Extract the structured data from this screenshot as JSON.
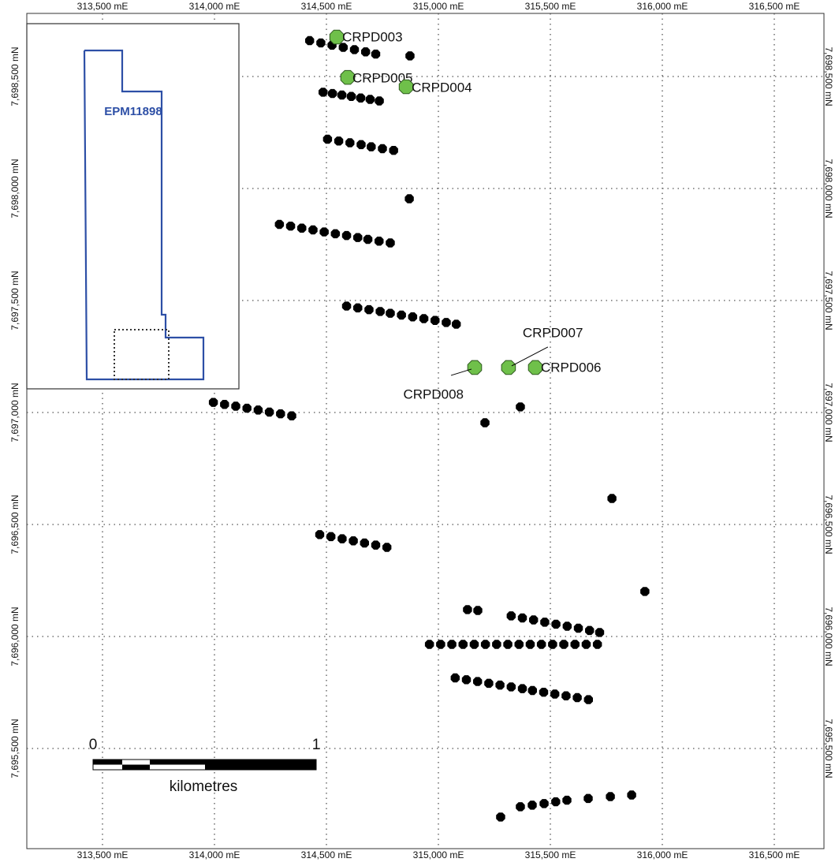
{
  "eastings": [
    {
      "value": 313500,
      "label": "313,500 mE"
    },
    {
      "value": 314000,
      "label": "314,000 mE"
    },
    {
      "value": 314500,
      "label": "314,500 mE"
    },
    {
      "value": 315000,
      "label": "315,000 mE"
    },
    {
      "value": 315500,
      "label": "315,500 mE"
    },
    {
      "value": 316000,
      "label": "316,000 mE"
    },
    {
      "value": 316500,
      "label": "316,500 mE"
    }
  ],
  "northings": [
    {
      "value": 7698500,
      "label": "7,698,500 mN"
    },
    {
      "value": 7698000,
      "label": "7,698,000 mN"
    },
    {
      "value": 7697500,
      "label": "7,697,500 mN"
    },
    {
      "value": 7697000,
      "label": "7,697,000 mN"
    },
    {
      "value": 7696500,
      "label": "7,696,500 mN"
    },
    {
      "value": 7696000,
      "label": "7,696,000 mN"
    },
    {
      "value": 7695500,
      "label": "7,695,500 mN"
    }
  ],
  "inset": {
    "tenement": "EPM11898"
  },
  "scale_bar": {
    "start": 0,
    "end": 1,
    "unit": "kilometres"
  },
  "collars": [
    {
      "label": "CRPD003",
      "easting": 314546,
      "northing": 7698676
    },
    {
      "label": "CRPD005",
      "easting": 314595,
      "northing": 7698496
    },
    {
      "label": "CRPD004",
      "easting": 314856,
      "northing": 7698454
    },
    {
      "label": "CRPD008",
      "easting": 315162,
      "northing": 7697201
    },
    {
      "label": "CRPD007",
      "easting": 315313,
      "northing": 7697201
    },
    {
      "label": "CRPD006",
      "easting": 315433,
      "northing": 7697201
    }
  ],
  "drill_lines": [
    [
      [
        314425,
        7698660
      ],
      [
        314475,
        7698650
      ],
      [
        314525,
        7698640
      ],
      [
        314575,
        7698630
      ],
      [
        314625,
        7698620
      ],
      [
        314675,
        7698610
      ],
      [
        314720,
        7698600
      ]
    ],
    [
      [
        314873,
        7698592
      ]
    ],
    [
      [
        314485,
        7698430
      ],
      [
        314527,
        7698424
      ],
      [
        314569,
        7698417
      ],
      [
        314611,
        7698411
      ],
      [
        314653,
        7698404
      ],
      [
        314695,
        7698398
      ],
      [
        314736,
        7698391
      ]
    ],
    [
      [
        314505,
        7698220
      ],
      [
        314555,
        7698212
      ],
      [
        314605,
        7698204
      ],
      [
        314655,
        7698196
      ],
      [
        314700,
        7698186
      ],
      [
        314750,
        7698178
      ],
      [
        314800,
        7698170
      ]
    ],
    [
      [
        314870,
        7697954
      ]
    ],
    [
      [
        314290,
        7697840
      ],
      [
        314340,
        7697832
      ],
      [
        314390,
        7697823
      ],
      [
        314440,
        7697815
      ],
      [
        314490,
        7697806
      ],
      [
        314540,
        7697798
      ],
      [
        314590,
        7697790
      ],
      [
        314640,
        7697781
      ],
      [
        314685,
        7697773
      ],
      [
        314735,
        7697765
      ],
      [
        314785,
        7697757
      ]
    ],
    [
      [
        314590,
        7697475
      ],
      [
        314640,
        7697467
      ],
      [
        314690,
        7697459
      ],
      [
        314740,
        7697451
      ],
      [
        314785,
        7697443
      ],
      [
        314835,
        7697435
      ],
      [
        314885,
        7697427
      ],
      [
        314935,
        7697419
      ],
      [
        314985,
        7697411
      ],
      [
        315035,
        7697402
      ],
      [
        315080,
        7697394
      ]
    ],
    [
      [
        313995,
        7697045
      ],
      [
        314045,
        7697036
      ],
      [
        314095,
        7697028
      ],
      [
        314145,
        7697019
      ],
      [
        314195,
        7697011
      ],
      [
        314245,
        7697002
      ],
      [
        314295,
        7696994
      ],
      [
        314345,
        7696985
      ]
    ],
    [
      [
        315366,
        7697025
      ]
    ],
    [
      [
        315208,
        7696954
      ]
    ],
    [
      [
        315775,
        7696616
      ]
    ],
    [
      [
        315922,
        7696201
      ]
    ],
    [
      [
        314470,
        7696455
      ],
      [
        314520,
        7696446
      ],
      [
        314570,
        7696436
      ],
      [
        314620,
        7696427
      ],
      [
        314670,
        7696417
      ],
      [
        314720,
        7696408
      ],
      [
        314770,
        7696398
      ]
    ],
    [
      [
        315130,
        7696120
      ],
      [
        315176,
        7696116
      ]
    ],
    [
      [
        315325,
        7696092
      ],
      [
        315375,
        7696083
      ],
      [
        315425,
        7696074
      ],
      [
        315475,
        7696064
      ],
      [
        315525,
        7696055
      ],
      [
        315575,
        7696046
      ],
      [
        315625,
        7696037
      ],
      [
        315675,
        7696027
      ],
      [
        315720,
        7696018
      ]
    ],
    [
      [
        314960,
        7695965
      ],
      [
        315010,
        7695965
      ],
      [
        315060,
        7695965
      ],
      [
        315110,
        7695965
      ],
      [
        315160,
        7695965
      ],
      [
        315210,
        7695965
      ],
      [
        315260,
        7695965
      ],
      [
        315310,
        7695965
      ],
      [
        315360,
        7695965
      ],
      [
        315410,
        7695965
      ],
      [
        315460,
        7695965
      ],
      [
        315510,
        7695965
      ],
      [
        315560,
        7695965
      ],
      [
        315610,
        7695965
      ],
      [
        315660,
        7695965
      ],
      [
        315710,
        7695965
      ]
    ],
    [
      [
        315075,
        7695815
      ],
      [
        315125,
        7695807
      ],
      [
        315175,
        7695799
      ],
      [
        315225,
        7695791
      ],
      [
        315275,
        7695783
      ],
      [
        315325,
        7695775
      ],
      [
        315375,
        7695767
      ],
      [
        315420,
        7695759
      ],
      [
        315470,
        7695751
      ],
      [
        315520,
        7695743
      ],
      [
        315570,
        7695735
      ],
      [
        315620,
        7695727
      ],
      [
        315670,
        7695718
      ]
    ],
    [
      [
        315278,
        7695194
      ]
    ],
    [
      [
        315366,
        7695240
      ],
      [
        315419,
        7695247
      ],
      [
        315472,
        7695254
      ],
      [
        315524,
        7695262
      ],
      [
        315574,
        7695269
      ],
      [
        315669,
        7695277
      ],
      [
        315768,
        7695285
      ],
      [
        315863,
        7695292
      ]
    ]
  ]
}
